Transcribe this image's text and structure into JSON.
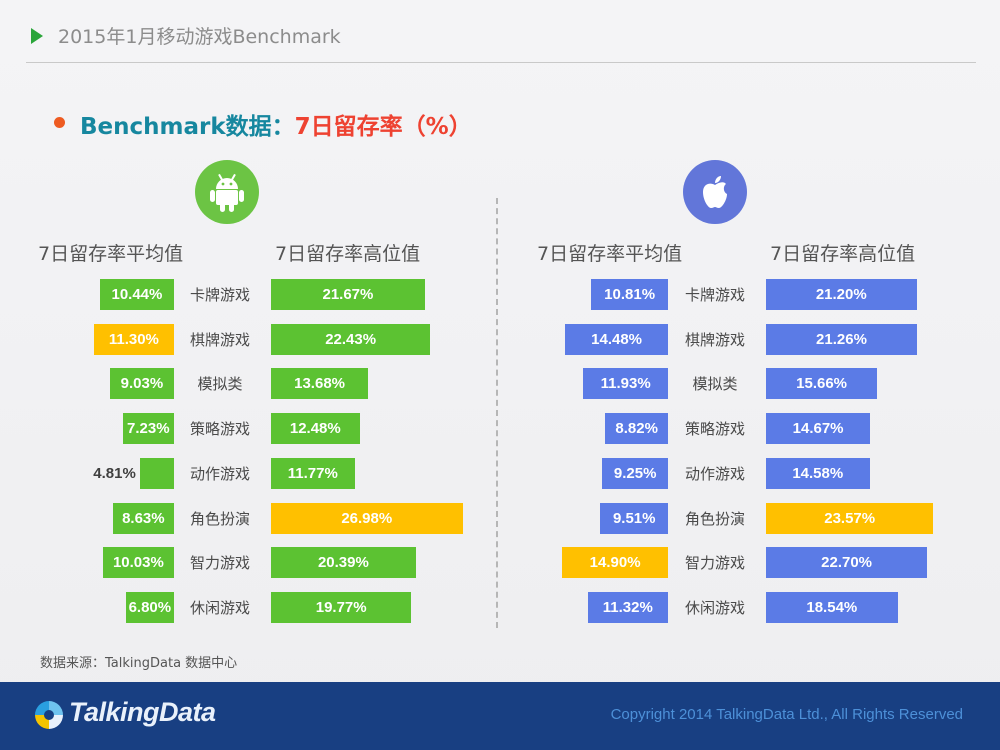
{
  "header": {
    "title": "2015年1月移动游戏Benchmark"
  },
  "subtitle": {
    "part1": "Benchmark数据：",
    "part2": "7日留存率（%）"
  },
  "colors": {
    "green": "#5cc232",
    "yellow": "#ffc000",
    "blue": "#5b7be6",
    "navy": "#183f82",
    "accent_red": "#ee4231",
    "accent_teal": "#16879f"
  },
  "platforms": {
    "left_icon": "android-icon",
    "right_icon": "apple-icon"
  },
  "chart_data": {
    "type": "bar",
    "categories": [
      "卡牌游戏",
      "棋牌游戏",
      "模拟类",
      "策略游戏",
      "动作游戏",
      "角色扮演",
      "智力游戏",
      "休闲游戏"
    ],
    "panels": [
      {
        "platform": "Android",
        "series": [
          {
            "name": "7日留存率平均值",
            "values": [
              10.44,
              11.3,
              9.03,
              7.23,
              4.81,
              8.63,
              10.03,
              6.8
            ],
            "labels": [
              "10.44%",
              "11.30%",
              "9.03%",
              "7.23%",
              "4.81%",
              "8.63%",
              "10.03%",
              "6.80%"
            ],
            "highlight_index": 1
          },
          {
            "name": "7日留存率高位值",
            "values": [
              21.67,
              22.43,
              13.68,
              12.48,
              11.77,
              26.98,
              20.39,
              19.77
            ],
            "labels": [
              "21.67%",
              "22.43%",
              "13.68%",
              "12.48%",
              "11.77%",
              "26.98%",
              "20.39%",
              "19.77%"
            ],
            "highlight_index": 5
          }
        ]
      },
      {
        "platform": "iOS",
        "series": [
          {
            "name": "7日留存率平均值",
            "values": [
              10.81,
              14.48,
              11.93,
              8.82,
              9.25,
              9.51,
              14.9,
              11.32
            ],
            "labels": [
              "10.81%",
              "14.48%",
              "11.93%",
              "8.82%",
              "9.25%",
              "9.51%",
              "14.90%",
              "11.32%"
            ],
            "highlight_index": 6
          },
          {
            "name": "7日留存率高位值",
            "values": [
              21.2,
              21.26,
              15.66,
              14.67,
              14.58,
              23.57,
              22.7,
              18.54
            ],
            "labels": [
              "21.20%",
              "21.26%",
              "15.66%",
              "14.67%",
              "14.58%",
              "23.57%",
              "22.70%",
              "18.54%"
            ],
            "highlight_index": 5
          }
        ]
      }
    ]
  },
  "source": "数据来源：TalkingData 数据中心",
  "footer": {
    "logo_text": "TalkingData",
    "copyright": "Copyright 2014 TalkingData Ltd., All Rights Reserved"
  }
}
